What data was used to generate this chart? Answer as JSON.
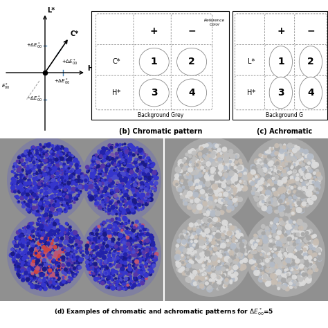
{
  "fig_width": 4.74,
  "fig_height": 4.74,
  "fig_dpi": 100,
  "panel_a_xlim": [
    -1.5,
    1.5
  ],
  "panel_a_ylim": [
    -1.5,
    1.5
  ],
  "chromatic_bg_color": "#8080a0",
  "chromatic_dot_blue1": "#3535cc",
  "chromatic_dot_blue2": "#2222aa",
  "chromatic_dot_blue3": "#4848cc",
  "chromatic_dot_blue4": "#1a1a88",
  "chromatic_dot_purple": "#5535aa",
  "chromatic_dot_pink": "#bb5577",
  "chromatic_dot_red": "#cc4444",
  "achromatic_bg_color": "#a8a8a8",
  "achromatic_dot_white": "#dcdcdc",
  "achromatic_dot_lgray": "#c0c0c0",
  "achromatic_dot_mgray": "#a8a8a8",
  "achromatic_dot_dgray": "#909090",
  "achromatic_dot_warm": "#c8beb4",
  "achromatic_dot_cool": "#b4bcc8",
  "panel_d_bg": "#909090",
  "panel_d_divider": "#909090"
}
